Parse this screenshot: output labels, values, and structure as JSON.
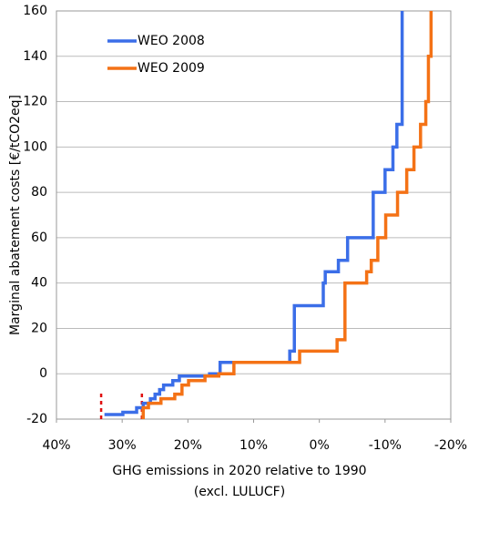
{
  "chart_data": {
    "type": "line",
    "step": true,
    "xlabel": [
      "GHG emissions in 2020 relative to 1990",
      "(excl. LULUCF)"
    ],
    "ylabel": "Marginal abatement costs [€/tCO2eq]",
    "xlim": [
      40,
      -20
    ],
    "xticks": [
      {
        "value": 40,
        "label": "40%"
      },
      {
        "value": 30,
        "label": "30%"
      },
      {
        "value": 20,
        "label": "20%"
      },
      {
        "value": 10,
        "label": "10%"
      },
      {
        "value": 0,
        "label": "0%"
      },
      {
        "value": -10,
        "label": "-10%"
      },
      {
        "value": -20,
        "label": "-20%"
      }
    ],
    "ylim": [
      -20,
      160
    ],
    "yticks": [
      -20,
      0,
      20,
      40,
      60,
      80,
      100,
      120,
      140,
      160
    ],
    "grid": true,
    "legend": "upper left",
    "series": [
      {
        "name": "WEO 2008",
        "color": "#3b6ee8",
        "x": [
          32.7,
          29.9,
          29.9,
          27.8,
          27.8,
          26.8,
          26.8,
          25.7,
          25.7,
          25,
          25,
          24.3,
          24.3,
          23.7,
          23.7,
          22.3,
          22.3,
          21.3,
          21.3,
          16.7,
          16.7,
          15.1,
          15.1,
          4.5,
          4.5,
          3.8,
          3.8,
          -0.6,
          -0.6,
          -0.9,
          -0.9,
          -2.9,
          -2.9,
          -4.3,
          -4.3,
          -8.2,
          -8.2,
          -10,
          -10,
          -11.2,
          -11.2,
          -11.8,
          -11.8,
          -12.6,
          -12.6
        ],
        "values": [
          -18,
          -18,
          -17,
          -17,
          -15,
          -15,
          -13,
          -13,
          -11,
          -11,
          -9,
          -9,
          -7,
          -7,
          -5,
          -5,
          -3,
          -3,
          -1,
          -1,
          0,
          0,
          5,
          5,
          10,
          10,
          30,
          30,
          40,
          40,
          45,
          45,
          50,
          50,
          60,
          60,
          80,
          80,
          90,
          90,
          100,
          100,
          110,
          110,
          160
        ]
      },
      {
        "name": "WEO 2009",
        "color": "#f47216",
        "x": [
          26.8,
          26.8,
          26,
          26,
          24.1,
          24.1,
          22,
          22,
          20.9,
          20.9,
          19.9,
          19.9,
          17.4,
          17.4,
          15.3,
          15.3,
          13,
          13,
          3,
          3,
          -2.7,
          -2.7,
          -3.9,
          -3.9,
          -7.2,
          -7.2,
          -7.9,
          -7.9,
          -8.9,
          -8.9,
          -10.1,
          -10.1,
          -11.9,
          -11.9,
          -13.3,
          -13.3,
          -14.4,
          -14.4,
          -15.4,
          -15.4,
          -16.2,
          -16.2,
          -16.6,
          -16.6,
          -17,
          -17
        ],
        "values": [
          -20,
          -15,
          -15,
          -13,
          -13,
          -11,
          -11,
          -9,
          -9,
          -5,
          -5,
          -3,
          -3,
          -1,
          -1,
          0,
          0,
          5,
          5,
          10,
          10,
          15,
          15,
          40,
          40,
          45,
          45,
          50,
          50,
          60,
          60,
          70,
          70,
          80,
          80,
          90,
          90,
          100,
          100,
          110,
          110,
          120,
          120,
          140,
          140,
          160
        ]
      }
    ],
    "reference_lines": {
      "color": "#e01010",
      "x": [
        33.2,
        27
      ],
      "y": [
        -20,
        -8
      ]
    }
  }
}
